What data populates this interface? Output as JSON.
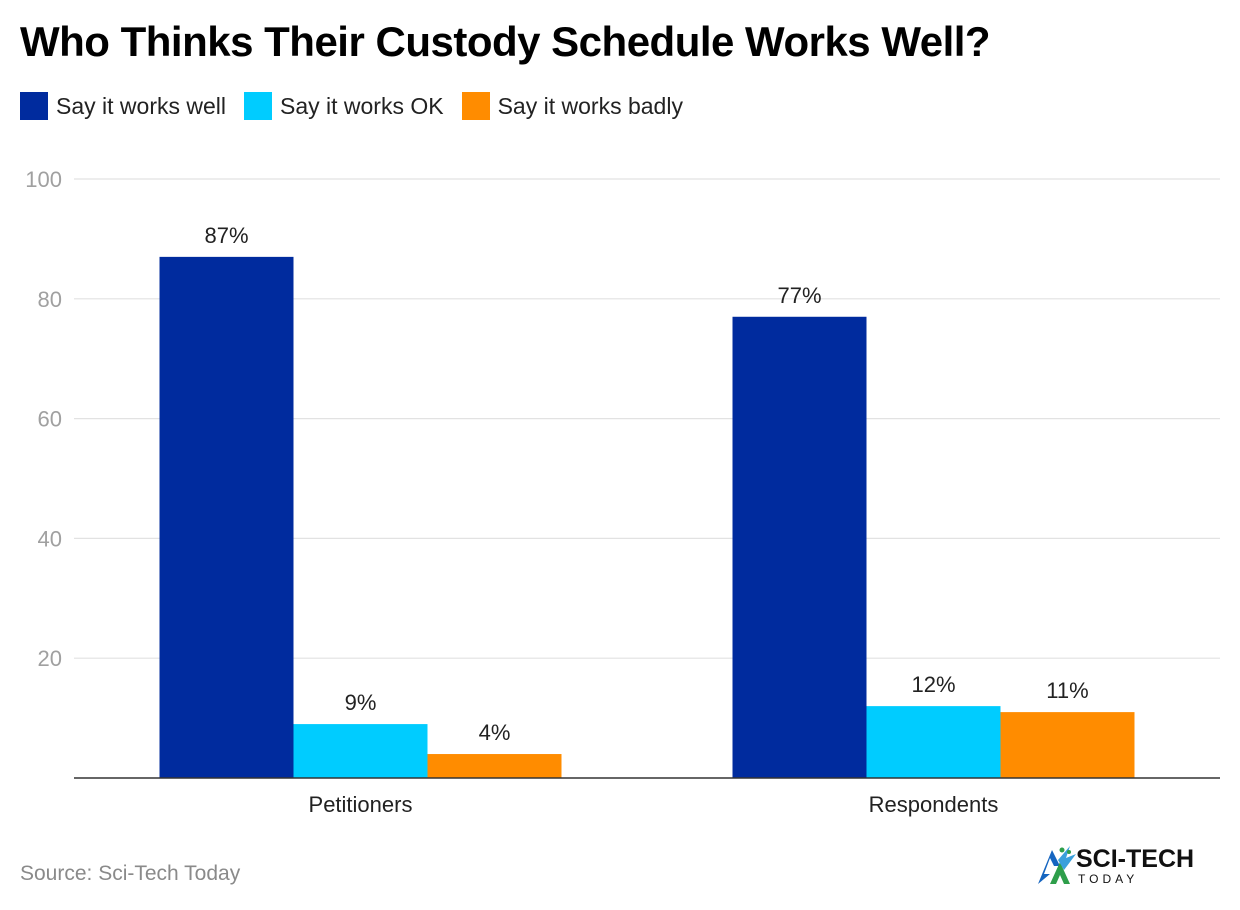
{
  "chart_data": {
    "type": "bar",
    "title": "Who Thinks Their Custody Schedule Works Well?",
    "categories": [
      "Petitioners",
      "Respondents"
    ],
    "series": [
      {
        "name": "Say it works well",
        "color": "#002b9e",
        "values": [
          87,
          77
        ],
        "labels": [
          "87%",
          "77%"
        ]
      },
      {
        "name": "Say it works OK",
        "color": "#00ccff",
        "values": [
          9,
          12
        ],
        "labels": [
          "9%",
          "12%"
        ]
      },
      {
        "name": "Say it works badly",
        "color": "#ff8c00",
        "values": [
          4,
          11
        ],
        "labels": [
          "4%",
          "11%"
        ]
      }
    ],
    "ylim": [
      0,
      100
    ],
    "yticks": [
      "20",
      "40",
      "60",
      "80",
      "100"
    ],
    "xlabel": "",
    "ylabel": "",
    "grid": true,
    "legend_position": "top-left"
  },
  "source": "Source: Sci-Tech Today",
  "logo": {
    "line1": "SCI-TECH",
    "line2": "TODAY"
  }
}
